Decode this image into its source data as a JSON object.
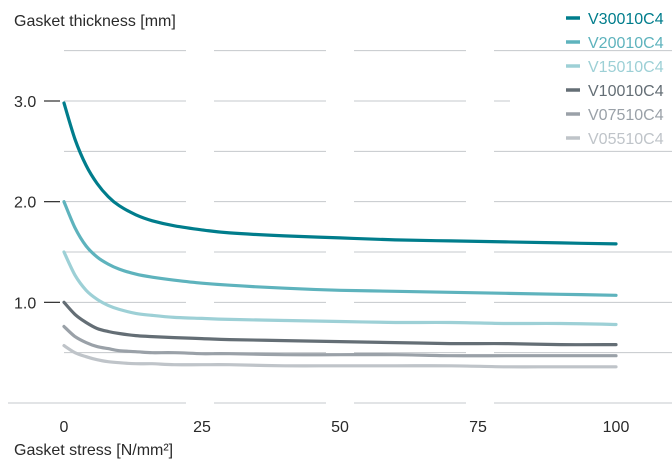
{
  "chart_data": {
    "type": "line",
    "xlabel": "Gasket stress [N/mm²]",
    "ylabel": "Gasket thickness [mm]",
    "xlim": [
      0,
      100
    ],
    "ylim": [
      0,
      3.5
    ],
    "x_ticks": [
      "0",
      "25",
      "50",
      "75",
      "100"
    ],
    "y_ticks": [
      "1.0",
      "2.0",
      "3.0"
    ],
    "y_tick_values": [
      1.0,
      2.0,
      3.0
    ],
    "grid": "horizontal dashed",
    "legend_position": "top-right",
    "x": [
      0,
      2,
      4,
      6,
      8,
      10,
      13,
      16,
      20,
      25,
      30,
      40,
      50,
      60,
      70,
      80,
      90,
      100
    ],
    "series": [
      {
        "name": "V30010C4",
        "color": "#007d8c",
        "values": [
          2.98,
          2.62,
          2.36,
          2.18,
          2.05,
          1.96,
          1.87,
          1.81,
          1.76,
          1.72,
          1.69,
          1.66,
          1.64,
          1.62,
          1.61,
          1.6,
          1.59,
          1.58
        ]
      },
      {
        "name": "V20010C4",
        "color": "#5eb3bd",
        "values": [
          2.0,
          1.74,
          1.56,
          1.45,
          1.38,
          1.33,
          1.28,
          1.25,
          1.22,
          1.19,
          1.17,
          1.14,
          1.12,
          1.11,
          1.1,
          1.09,
          1.08,
          1.07
        ]
      },
      {
        "name": "V15010C4",
        "color": "#9dd0d6",
        "values": [
          1.5,
          1.27,
          1.12,
          1.03,
          0.97,
          0.93,
          0.89,
          0.87,
          0.85,
          0.84,
          0.83,
          0.82,
          0.81,
          0.8,
          0.8,
          0.79,
          0.79,
          0.78
        ]
      },
      {
        "name": "V10010C4",
        "color": "#646e75",
        "values": [
          1.0,
          0.88,
          0.8,
          0.74,
          0.71,
          0.69,
          0.67,
          0.66,
          0.65,
          0.64,
          0.63,
          0.62,
          0.61,
          0.6,
          0.59,
          0.59,
          0.58,
          0.58
        ]
      },
      {
        "name": "V07510C4",
        "color": "#9aa1a8",
        "values": [
          0.76,
          0.66,
          0.6,
          0.56,
          0.54,
          0.52,
          0.51,
          0.5,
          0.5,
          0.49,
          0.49,
          0.48,
          0.48,
          0.48,
          0.47,
          0.47,
          0.47,
          0.47
        ]
      },
      {
        "name": "V05510C4",
        "color": "#bfc4c9",
        "values": [
          0.57,
          0.5,
          0.46,
          0.43,
          0.41,
          0.4,
          0.39,
          0.39,
          0.38,
          0.38,
          0.38,
          0.37,
          0.37,
          0.37,
          0.37,
          0.36,
          0.36,
          0.36
        ]
      }
    ]
  }
}
